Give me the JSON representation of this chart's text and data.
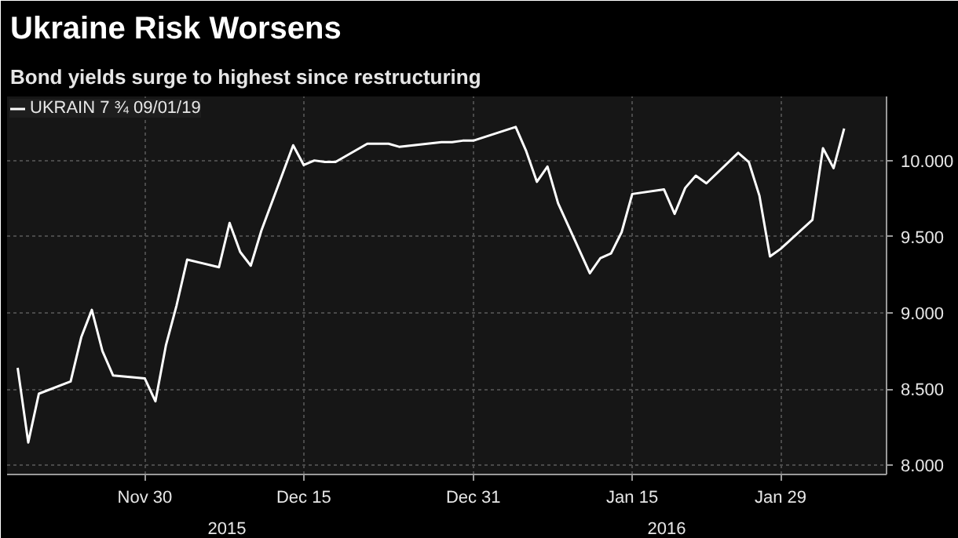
{
  "chart_data": {
    "type": "line",
    "title": "Ukraine Risk Worsens",
    "subtitle": "Bond yields surge to highest since restructuring",
    "x": [
      "2015-11-18",
      "2015-11-19",
      "2015-11-20",
      "2015-11-23",
      "2015-11-24",
      "2015-11-25",
      "2015-11-26",
      "2015-11-27",
      "2015-11-30",
      "2015-12-01",
      "2015-12-02",
      "2015-12-03",
      "2015-12-04",
      "2015-12-07",
      "2015-12-08",
      "2015-12-09",
      "2015-12-10",
      "2015-12-11",
      "2015-12-14",
      "2015-12-15",
      "2015-12-16",
      "2015-12-17",
      "2015-12-18",
      "2015-12-21",
      "2015-12-22",
      "2015-12-23",
      "2015-12-24",
      "2015-12-28",
      "2015-12-29",
      "2015-12-30",
      "2015-12-31",
      "2016-01-04",
      "2016-01-05",
      "2016-01-06",
      "2016-01-07",
      "2016-01-08",
      "2016-01-11",
      "2016-01-12",
      "2016-01-13",
      "2016-01-14",
      "2016-01-15",
      "2016-01-18",
      "2016-01-19",
      "2016-01-20",
      "2016-01-21",
      "2016-01-22",
      "2016-01-25",
      "2016-01-26",
      "2016-01-27",
      "2016-01-28",
      "2016-01-29",
      "2016-02-01",
      "2016-02-02",
      "2016-02-03",
      "2016-02-04"
    ],
    "series": [
      {
        "name": "UKRAIN 7 ¾ 09/01/19",
        "color": "#ffffff",
        "values": [
          8.64,
          8.15,
          8.47,
          8.55,
          8.84,
          9.02,
          8.75,
          8.59,
          8.57,
          8.42,
          8.79,
          9.05,
          9.35,
          9.3,
          9.59,
          9.4,
          9.31,
          9.54,
          10.1,
          9.97,
          10.0,
          9.99,
          9.99,
          10.11,
          10.11,
          10.11,
          10.09,
          10.12,
          10.12,
          10.13,
          10.13,
          10.22,
          10.06,
          9.86,
          9.96,
          9.72,
          9.26,
          9.36,
          9.39,
          9.53,
          9.78,
          9.81,
          9.65,
          9.82,
          9.9,
          9.85,
          10.05,
          9.99,
          9.77,
          9.37,
          9.42,
          9.61,
          10.08,
          9.95,
          10.21
        ]
      }
    ],
    "xlim": [
      "2015-11-17",
      "2016-02-08"
    ],
    "xticks": [
      {
        "value": "2015-11-30",
        "label": "Nov 30"
      },
      {
        "value": "2015-12-15",
        "label": "Dec 15"
      },
      {
        "value": "2015-12-31",
        "label": "Dec 31"
      },
      {
        "value": "2016-01-15",
        "label": "Jan 15"
      },
      {
        "value": "2016-01-29",
        "label": "Jan 29"
      }
    ],
    "ylim": [
      7.94,
      10.42
    ],
    "yticks": [
      {
        "value": 8,
        "label": "8.000"
      },
      {
        "value": 8.5,
        "label": "8.500"
      },
      {
        "value": 9,
        "label": "9.000"
      },
      {
        "value": 9.5,
        "label": "9.500"
      },
      {
        "value": 10,
        "label": "10.000"
      }
    ],
    "annotations": [
      "2015",
      "2016"
    ],
    "grid": true,
    "legend": "top left",
    "line_style": "solid"
  }
}
